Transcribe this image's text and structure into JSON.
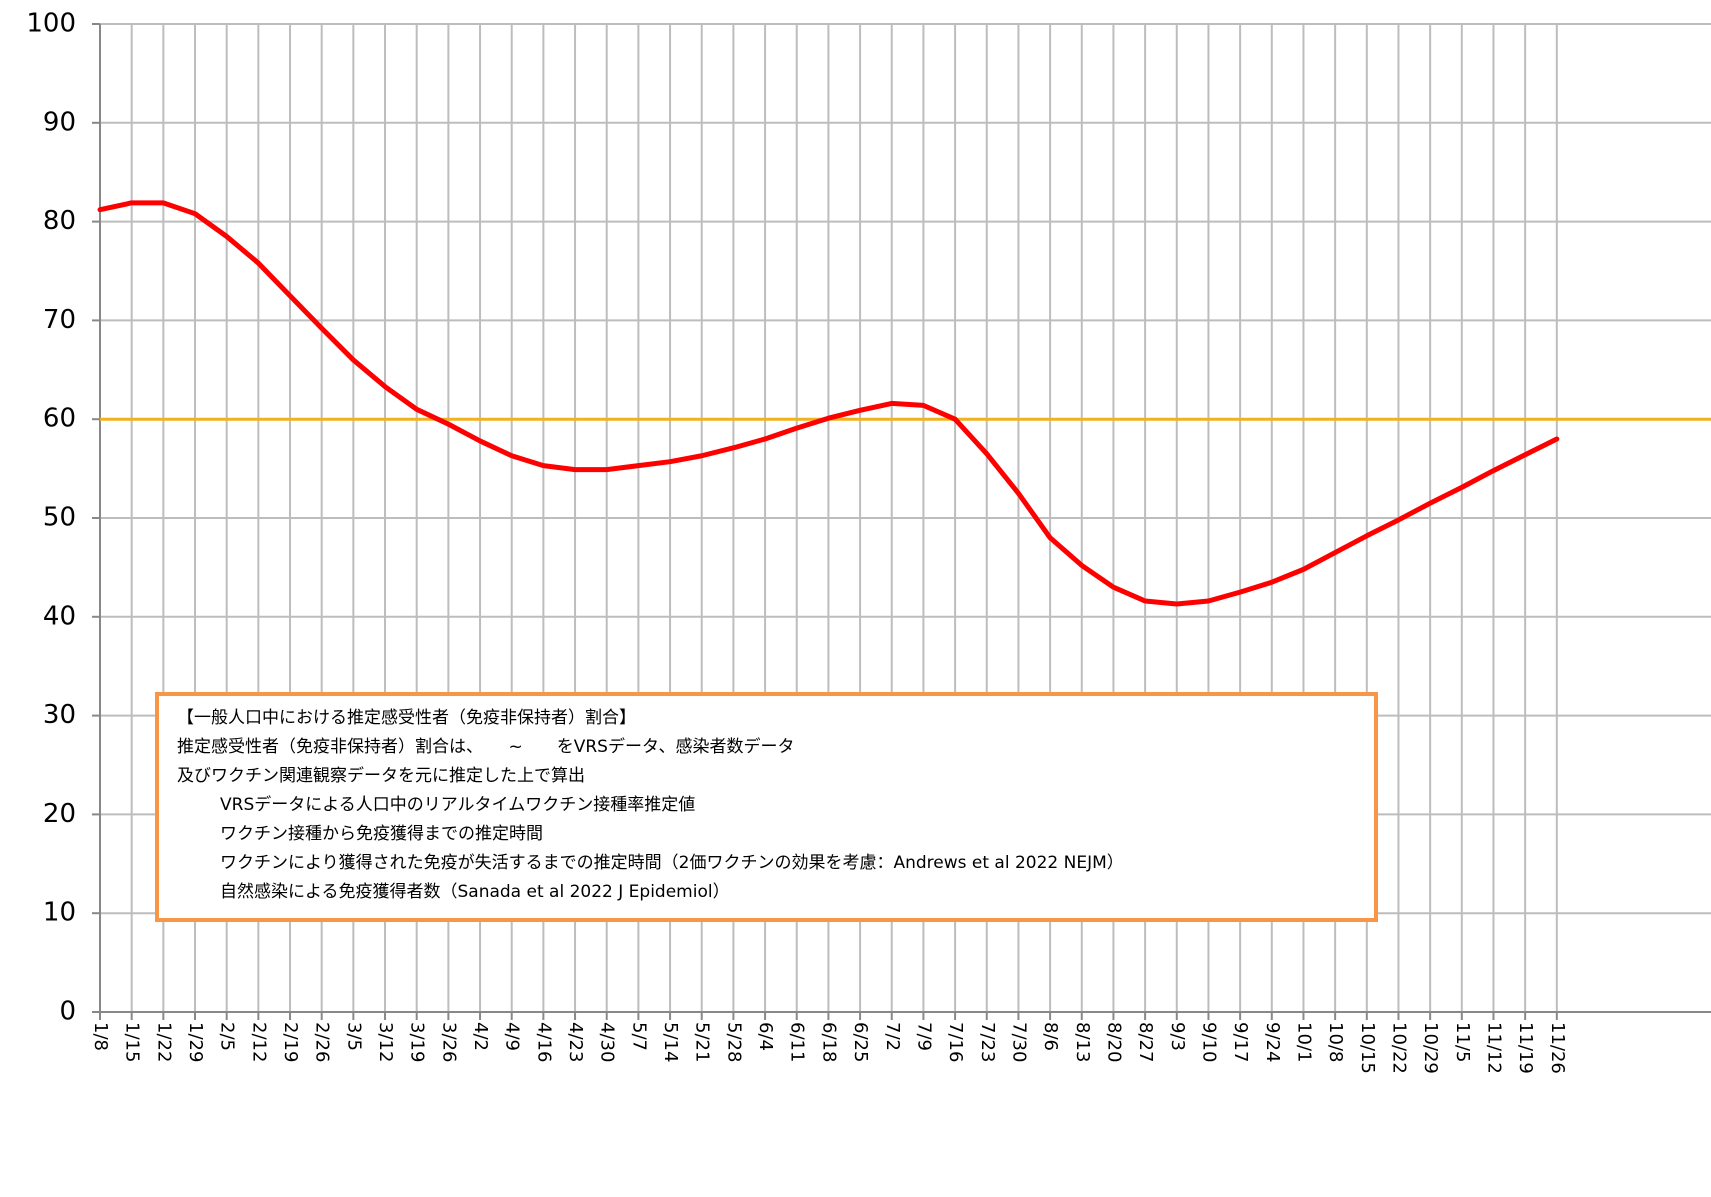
{
  "chart_data": {
    "type": "line",
    "categories": [
      "1/8",
      "1/15",
      "1/22",
      "1/29",
      "2/5",
      "2/12",
      "2/19",
      "2/26",
      "3/5",
      "3/12",
      "3/19",
      "3/26",
      "4/2",
      "4/9",
      "4/16",
      "4/23",
      "4/30",
      "5/7",
      "5/14",
      "5/21",
      "5/28",
      "6/4",
      "6/11",
      "6/18",
      "6/25",
      "7/2",
      "7/9",
      "7/16",
      "7/23",
      "7/30",
      "8/6",
      "8/13",
      "8/20",
      "8/27",
      "9/3",
      "9/10",
      "9/17",
      "9/24",
      "10/1",
      "10/8",
      "10/15",
      "10/22",
      "10/29",
      "11/5",
      "11/12",
      "11/19",
      "11/26"
    ],
    "values": [
      81.2,
      81.9,
      81.9,
      80.8,
      78.5,
      75.8,
      72.5,
      69.2,
      66,
      63.3,
      61,
      59.5,
      57.8,
      56.3,
      55.3,
      54.9,
      54.9,
      55.3,
      55.7,
      56.3,
      57.1,
      58,
      59.1,
      60.1,
      60.9,
      61.6,
      61.4,
      60,
      56.5,
      52.5,
      48,
      45.2,
      43,
      41.6,
      41.3,
      41.6,
      42.5,
      43.5,
      44.8,
      46.5,
      48.2,
      49.8,
      51.5,
      53.1,
      54.8,
      56.4,
      58
    ],
    "color": "#ff0000",
    "reference_line": {
      "value": 60,
      "color": "#f0b21e"
    },
    "ylim": [
      0,
      100
    ],
    "yticks": [
      0,
      10,
      20,
      30,
      40,
      50,
      60,
      70,
      80,
      90,
      100
    ],
    "grid": true,
    "annotation": {
      "heading": "【一般人口中における推定感受性者（免疫非保持者）割合】",
      "lines": [
        "推定感受性者（免疫非保持者）割合は、　　~　　をVRSデータ、感染者数データ",
        "及びワクチン関連観察データを元に推定した上で算出"
      ],
      "notes": [
        "VRSデータによる人口中のリアルタイムワクチン接種率推定値",
        "ワクチン接種から免疫獲得までの推定時間",
        "ワクチンにより獲得された免疫が失活するまでの推定時間（2価ワクチンの効果を考慮：Andrews et al 2022 NEJM）",
        "自然感染による免疫獲得者数（Sanada et al 2022 J Epidemiol）"
      ]
    }
  }
}
